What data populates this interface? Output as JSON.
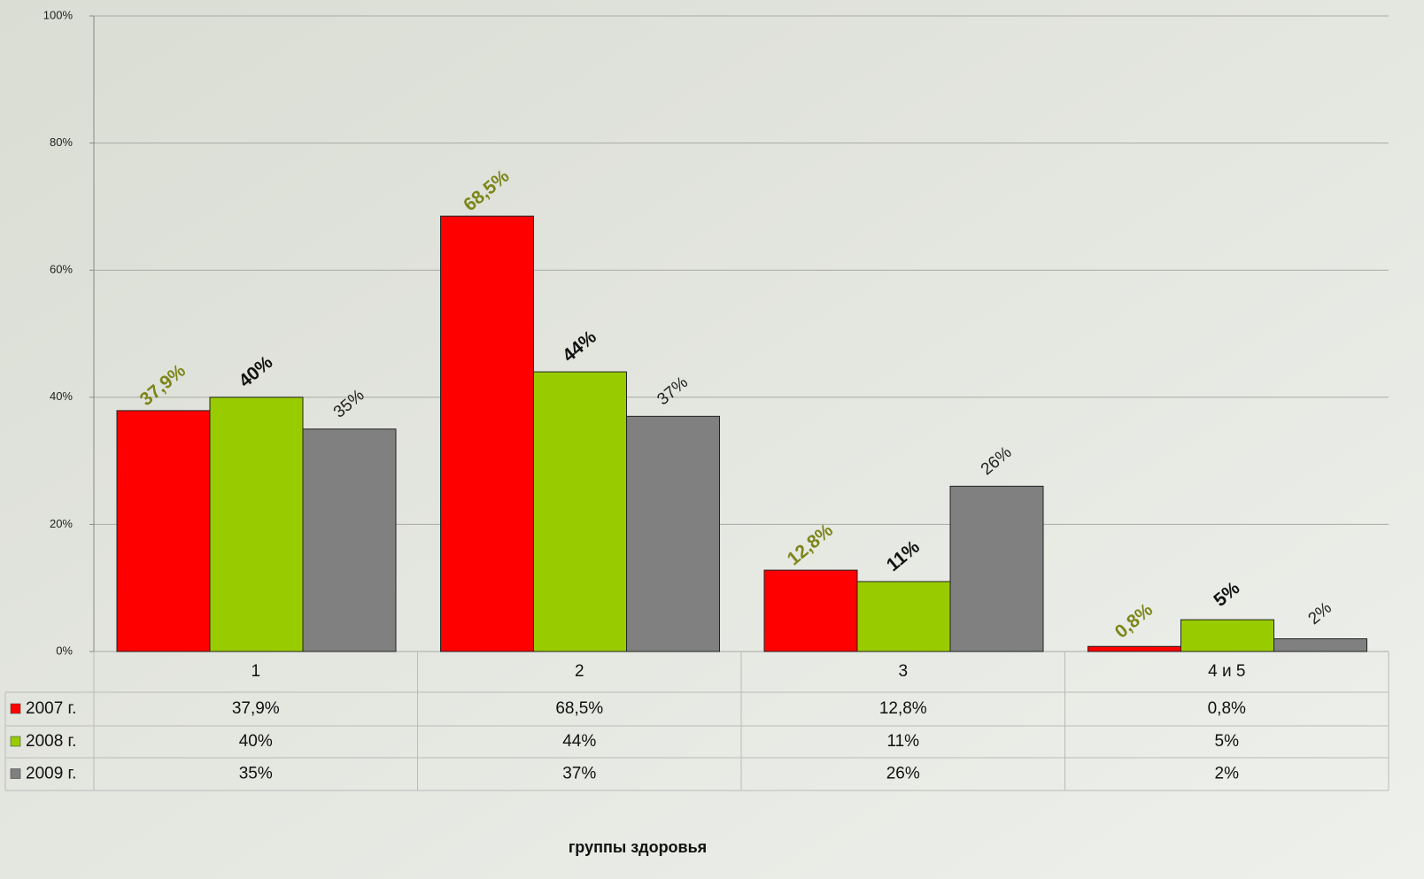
{
  "chart_data": {
    "type": "bar",
    "x_label": "группы здоровья",
    "categories": [
      "1",
      "2",
      "3",
      "4 и 5"
    ],
    "series": [
      {
        "name": "2007 г.",
        "color": "#ff0000",
        "values": [
          37.9,
          68.5,
          12.8,
          0.8
        ],
        "value_labels": [
          "37,9%",
          "68,5%",
          "12,8%",
          "0,8%"
        ]
      },
      {
        "name": "2008 г.",
        "color": "#99cc00",
        "values": [
          40,
          44,
          11,
          5
        ],
        "value_labels": [
          "40%",
          "44%",
          "11%",
          "5%"
        ]
      },
      {
        "name": "2009 г.",
        "color": "#808080",
        "values": [
          35,
          37,
          26,
          2
        ],
        "value_labels": [
          "35%",
          "37%",
          "26%",
          "2%"
        ]
      }
    ],
    "ylim": [
      0,
      100
    ],
    "yticks": [
      {
        "value": 0,
        "label": "0%"
      },
      {
        "value": 20,
        "label": "20%"
      },
      {
        "value": 40,
        "label": "40%"
      },
      {
        "value": 60,
        "label": "60%"
      },
      {
        "value": 80,
        "label": "80%"
      },
      {
        "value": 100,
        "label": "100%"
      }
    ],
    "grid": true
  }
}
